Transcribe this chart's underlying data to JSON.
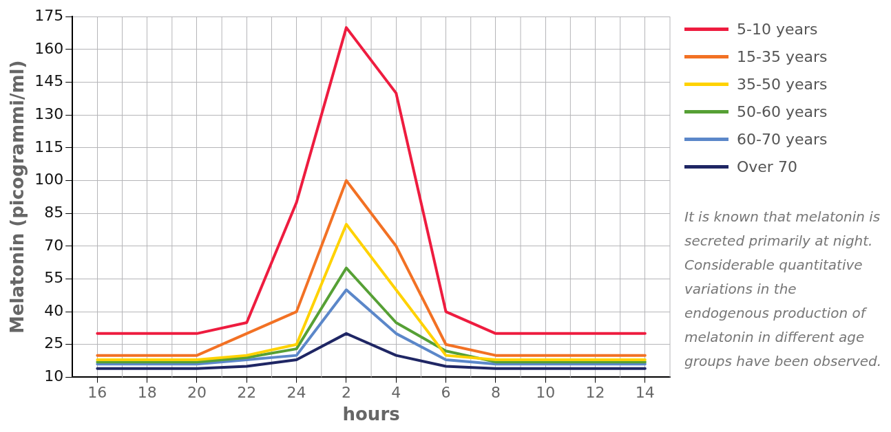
{
  "chart_data": {
    "type": "line",
    "xlabel": "hours",
    "ylabel": "Melatonin (picogrammi/ml)",
    "categories": [
      "16",
      "18",
      "20",
      "22",
      "24",
      "2",
      "4",
      "6",
      "8",
      "10",
      "12",
      "14"
    ],
    "series": [
      {
        "name": "5-10 years",
        "color": "#ee1c3f",
        "values": [
          30,
          30,
          30,
          35,
          90,
          170,
          140,
          40,
          30,
          30,
          30,
          30
        ]
      },
      {
        "name": "15-35 years",
        "color": "#f27124",
        "values": [
          20,
          20,
          20,
          30,
          40,
          100,
          70,
          25,
          20,
          20,
          20,
          20
        ]
      },
      {
        "name": "35-50 years",
        "color": "#ffd200",
        "values": [
          18,
          18,
          18,
          20,
          25,
          80,
          50,
          20,
          18,
          18,
          18,
          18
        ]
      },
      {
        "name": "50-60 years",
        "color": "#56a035",
        "values": [
          17,
          17,
          17,
          19,
          23,
          60,
          35,
          22,
          17,
          17,
          17,
          17
        ]
      },
      {
        "name": "60-70 years",
        "color": "#5b87c9",
        "values": [
          16,
          16,
          16,
          18,
          20,
          50,
          30,
          18,
          16,
          16,
          16,
          16
        ]
      },
      {
        "name": "Over 70",
        "color": "#1f2664",
        "values": [
          14,
          14,
          14,
          15,
          18,
          30,
          20,
          15,
          14,
          14,
          14,
          14
        ]
      }
    ],
    "ylim": [
      10,
      175
    ],
    "yticks": [
      10,
      25,
      40,
      55,
      70,
      85,
      100,
      115,
      130,
      145,
      160,
      175
    ],
    "grid": true,
    "legend": "top right",
    "marker": "none",
    "line_style": "solid",
    "annotations": [
      "It is known that melatonin is secreted primarily at night. Considerable quantitative variations in the endogenous production of melatonin in  different age groups have been observed."
    ]
  }
}
